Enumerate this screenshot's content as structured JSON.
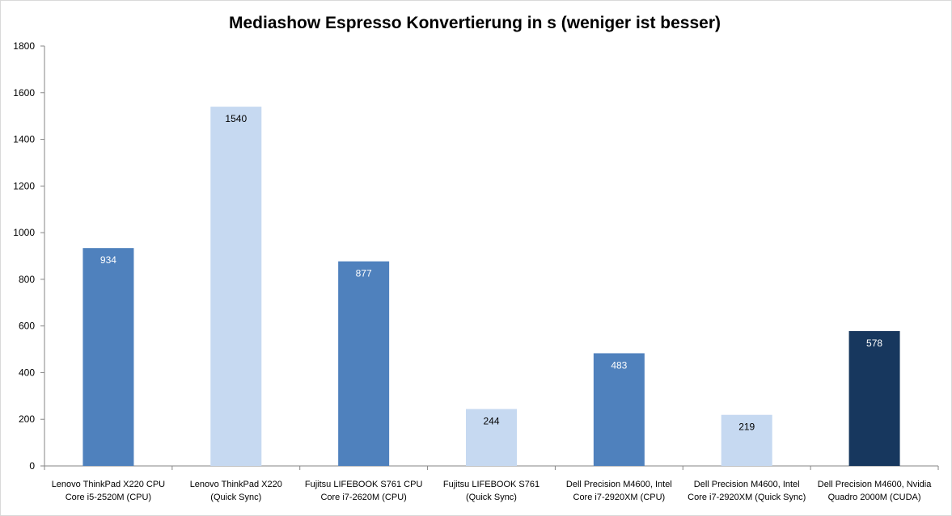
{
  "chart_data": {
    "type": "bar",
    "title": "Mediashow Espresso Konvertierung in s (weniger ist besser)",
    "xlabel": "",
    "ylabel": "",
    "ylim": [
      0,
      1800
    ],
    "yticks": [
      0,
      200,
      400,
      600,
      800,
      1000,
      1200,
      1400,
      1600,
      1800
    ],
    "grid": false,
    "legend": "none",
    "categories": [
      [
        "Lenovo ThinkPad X220  CPU",
        "Core i5-2520M (CPU)"
      ],
      [
        "Lenovo ThinkPad X220",
        "(Quick Sync)"
      ],
      [
        "Fujitsu LIFEBOOK S761 CPU",
        "Core i7-2620M (CPU)"
      ],
      [
        "Fujitsu LIFEBOOK S761",
        "(Quick Sync)"
      ],
      [
        "Dell Precision M4600, Intel",
        "Core i7-2920XM (CPU)"
      ],
      [
        "Dell Precision M4600, Intel",
        "Core i7-2920XM (Quick Sync)"
      ],
      [
        "Dell Precision M4600, Nvidia",
        "Quadro 2000M (CUDA)"
      ]
    ],
    "values": [
      934,
      1540,
      877,
      244,
      483,
      219,
      578
    ],
    "bar_colors": [
      "#4f81bd",
      "#c6d9f1",
      "#4f81bd",
      "#c6d9f1",
      "#4f81bd",
      "#c6d9f1",
      "#17375e"
    ],
    "label_colors": [
      "#ffffff",
      "#000000",
      "#ffffff",
      "#000000",
      "#ffffff",
      "#000000",
      "#ffffff"
    ]
  }
}
